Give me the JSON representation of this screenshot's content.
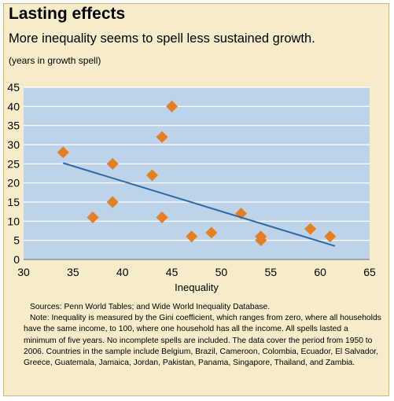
{
  "header": {
    "title": "Lasting effects",
    "subtitle": "More inequality seems to spell less sustained growth.",
    "units": "(years in growth spell)"
  },
  "colors": {
    "panel": "#f7ecca",
    "plot_bg": "#bcd3ea",
    "grid": "#ffffff",
    "marker": "#e67e22",
    "trend": "#2d6aa3"
  },
  "chart_data": {
    "type": "scatter",
    "title": "Lasting effects",
    "subtitle": "More inequality seems to spell less sustained growth.",
    "ylabel": "(years in growth spell)",
    "xlabel": "Inequality",
    "xlim": [
      30,
      65
    ],
    "ylim": [
      0,
      45
    ],
    "xticks": [
      30,
      35,
      40,
      45,
      50,
      55,
      60,
      65
    ],
    "yticks": [
      0,
      5,
      10,
      15,
      20,
      25,
      30,
      35,
      40,
      45
    ],
    "grid": true,
    "points": [
      {
        "x": 34,
        "y": 28
      },
      {
        "x": 37,
        "y": 11
      },
      {
        "x": 39,
        "y": 25
      },
      {
        "x": 39,
        "y": 15
      },
      {
        "x": 43,
        "y": 22
      },
      {
        "x": 44,
        "y": 32
      },
      {
        "x": 44,
        "y": 11
      },
      {
        "x": 45,
        "y": 40
      },
      {
        "x": 47,
        "y": 6
      },
      {
        "x": 49,
        "y": 7
      },
      {
        "x": 52,
        "y": 12
      },
      {
        "x": 54,
        "y": 6
      },
      {
        "x": 54,
        "y": 5
      },
      {
        "x": 59,
        "y": 8
      },
      {
        "x": 61,
        "y": 6
      }
    ],
    "trend_line": {
      "x": [
        34,
        61.5
      ],
      "y": [
        25.2,
        3.5
      ]
    }
  },
  "notes": {
    "sources": "Sources: Penn World Tables; and Wide World Inequality Database.",
    "note": "Note: Inequality is measured by the Gini coefficient, which ranges from zero, where all households have the same income, to 100, where one household has all the income. All spells lasted a minimum of five years. No incomplete spells are included. The data cover the period from 1950 to 2006. Countries in the sample include Belgium, Brazil, Cameroon, Colombia, Ecuador, El Salvador, Greece, Guatemala, Jamaica, Jordan, Pakistan, Panama, Singapore, Thailand, and Zambia."
  }
}
